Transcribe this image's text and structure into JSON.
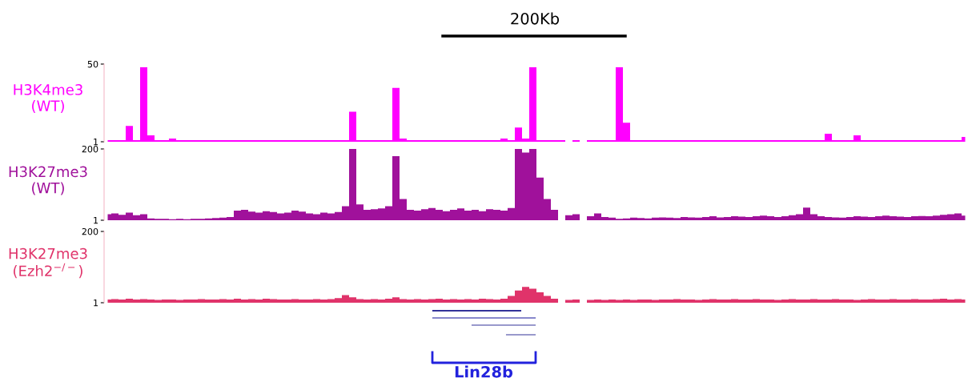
{
  "chart_data": [
    {
      "type": "area",
      "ylabel": "H3K4me3\n(WT)",
      "tick_labels": "y",
      "ylim": [
        1,
        50
      ],
      "yticks": [
        1,
        50
      ],
      "annotations": [
        "200Kb"
      ],
      "categories": [
        null,
        null,
        null,
        null,
        null,
        null,
        null,
        null,
        null,
        null,
        null,
        null,
        null,
        null,
        null,
        null,
        null,
        null,
        null,
        null,
        null,
        null,
        null,
        null,
        null,
        null,
        null,
        null,
        null,
        null,
        null,
        null,
        null,
        null,
        null,
        null,
        null,
        null,
        null,
        null,
        null,
        null,
        null,
        null,
        null,
        null,
        null,
        null,
        null,
        null,
        null,
        null,
        null,
        null,
        null,
        null,
        null,
        null,
        null,
        null,
        null,
        null,
        null,
        null,
        null,
        null,
        null,
        null,
        null,
        null,
        null,
        null,
        null,
        null,
        null,
        null,
        null,
        null,
        null,
        null,
        null,
        null,
        null,
        null,
        null,
        null,
        null,
        null,
        null,
        null,
        null,
        null,
        null,
        null,
        null,
        null,
        null,
        null,
        null,
        null,
        null,
        null,
        null,
        null,
        null,
        null,
        null,
        null,
        null,
        null,
        null,
        null,
        null,
        null,
        null,
        null,
        null,
        null,
        null,
        null
      ],
      "series": [
        {
          "color": "#ff00ff",
          "values": [
            2,
            2,
            2,
            11,
            2,
            48,
            5,
            2,
            2,
            3,
            2,
            2,
            2,
            2,
            2,
            2,
            2,
            2,
            2,
            2,
            2,
            2,
            2,
            2,
            2,
            2,
            2,
            2,
            2,
            2,
            2,
            2,
            2,
            2,
            20,
            2,
            2,
            2,
            2,
            2,
            35,
            3,
            2,
            2,
            2,
            2,
            2,
            2,
            2,
            2,
            2,
            2,
            2,
            2,
            2,
            3,
            2,
            10,
            3,
            48,
            2,
            2,
            2,
            2,
            1,
            2,
            1,
            2,
            2,
            2,
            2,
            48,
            13,
            2,
            2,
            2,
            2,
            2,
            2,
            2,
            2,
            2,
            2,
            2,
            2,
            2,
            2,
            2,
            2,
            2,
            2,
            2,
            2,
            2,
            2,
            2,
            2,
            2,
            2,
            2,
            6,
            2,
            2,
            2,
            5,
            2,
            2,
            2,
            2,
            2,
            2,
            2,
            2,
            2,
            2,
            2,
            2,
            2,
            2,
            4
          ]
        }
      ]
    },
    {
      "type": "area",
      "ylabel": "H3K27me3\n(WT)",
      "tick_labels": "y",
      "ylim": [
        1,
        200
      ],
      "yticks": [
        1,
        200
      ],
      "categories": [
        null,
        null,
        null,
        null,
        null,
        null,
        null,
        null,
        null,
        null,
        null,
        null,
        null,
        null,
        null,
        null,
        null,
        null,
        null,
        null,
        null,
        null,
        null,
        null,
        null,
        null,
        null,
        null,
        null,
        null,
        null,
        null,
        null,
        null,
        null,
        null,
        null,
        null,
        null,
        null,
        null,
        null,
        null,
        null,
        null,
        null,
        null,
        null,
        null,
        null,
        null,
        null,
        null,
        null,
        null,
        null,
        null,
        null,
        null,
        null,
        null,
        null,
        null,
        null,
        null,
        null,
        null,
        null,
        null,
        null,
        null,
        null,
        null,
        null,
        null,
        null,
        null,
        null,
        null,
        null,
        null,
        null,
        null,
        null,
        null,
        null,
        null,
        null,
        null,
        null,
        null,
        null,
        null,
        null,
        null,
        null,
        null,
        null,
        null,
        null,
        null,
        null,
        null,
        null,
        null,
        null,
        null,
        null,
        null,
        null,
        null,
        null,
        null,
        null,
        null,
        null,
        null,
        null,
        null,
        null
      ],
      "series": [
        {
          "color": "#a0119b",
          "values": [
            18,
            20,
            16,
            22,
            15,
            18,
            6,
            5,
            5,
            4,
            5,
            4,
            5,
            5,
            6,
            7,
            8,
            10,
            28,
            30,
            25,
            22,
            26,
            24,
            20,
            22,
            28,
            25,
            20,
            18,
            22,
            20,
            24,
            40,
            200,
            45,
            30,
            32,
            34,
            40,
            180,
            60,
            30,
            28,
            32,
            35,
            30,
            26,
            30,
            34,
            28,
            30,
            26,
            32,
            30,
            28,
            35,
            200,
            190,
            200,
            120,
            60,
            30,
            1,
            15,
            18,
            1,
            12,
            20,
            10,
            8,
            5,
            6,
            8,
            7,
            6,
            8,
            9,
            8,
            7,
            10,
            9,
            8,
            10,
            12,
            9,
            10,
            12,
            11,
            10,
            12,
            14,
            12,
            10,
            12,
            15,
            18,
            36,
            18,
            12,
            10,
            9,
            8,
            10,
            12,
            11,
            10,
            12,
            14,
            12,
            11,
            10,
            12,
            13,
            12,
            14,
            16,
            18,
            20,
            14
          ]
        }
      ]
    },
    {
      "type": "area",
      "ylabel": "H3K27me3\n(Ezh2$^{−/−}$)",
      "tick_labels": "y",
      "ylim": [
        1,
        200
      ],
      "yticks": [
        1,
        200
      ],
      "annotations": [
        "Lin28b"
      ],
      "categories": [
        null,
        null,
        null,
        null,
        null,
        null,
        null,
        null,
        null,
        null,
        null,
        null,
        null,
        null,
        null,
        null,
        null,
        null,
        null,
        null,
        null,
        null,
        null,
        null,
        null,
        null,
        null,
        null,
        null,
        null,
        null,
        null,
        null,
        null,
        null,
        null,
        null,
        null,
        null,
        null,
        null,
        null,
        null,
        null,
        null,
        null,
        null,
        null,
        null,
        null,
        null,
        null,
        null,
        null,
        null,
        null,
        null,
        null,
        null,
        null,
        null,
        null,
        null,
        null,
        null,
        null,
        null,
        null,
        null,
        null,
        null,
        null,
        null,
        null,
        null,
        null,
        null,
        null,
        null,
        null,
        null,
        null,
        null,
        null,
        null,
        null,
        null,
        null,
        null,
        null,
        null,
        null,
        null,
        null,
        null,
        null,
        null,
        null,
        null,
        null,
        null,
        null,
        null,
        null,
        null,
        null,
        null,
        null,
        null,
        null,
        null,
        null,
        null,
        null,
        null,
        null,
        null,
        null,
        null,
        null
      ],
      "series": [
        {
          "color": "#e0336a",
          "values": [
            10,
            11,
            10,
            12,
            10,
            11,
            10,
            9,
            10,
            10,
            9,
            10,
            10,
            11,
            10,
            10,
            11,
            10,
            12,
            10,
            11,
            10,
            12,
            11,
            10,
            10,
            11,
            10,
            10,
            11,
            10,
            11,
            14,
            22,
            16,
            11,
            10,
            11,
            10,
            12,
            16,
            11,
            10,
            11,
            10,
            11,
            12,
            10,
            11,
            10,
            11,
            10,
            12,
            11,
            10,
            12,
            20,
            35,
            45,
            40,
            30,
            20,
            12,
            1,
            9,
            10,
            1,
            9,
            10,
            9,
            10,
            9,
            10,
            9,
            10,
            10,
            9,
            10,
            10,
            11,
            10,
            10,
            9,
            10,
            11,
            10,
            10,
            11,
            10,
            10,
            11,
            10,
            10,
            9,
            10,
            11,
            10,
            10,
            11,
            10,
            10,
            11,
            10,
            10,
            9,
            10,
            11,
            10,
            10,
            11,
            10,
            10,
            11,
            10,
            10,
            11,
            12,
            10,
            11,
            10
          ]
        }
      ]
    }
  ]
}
